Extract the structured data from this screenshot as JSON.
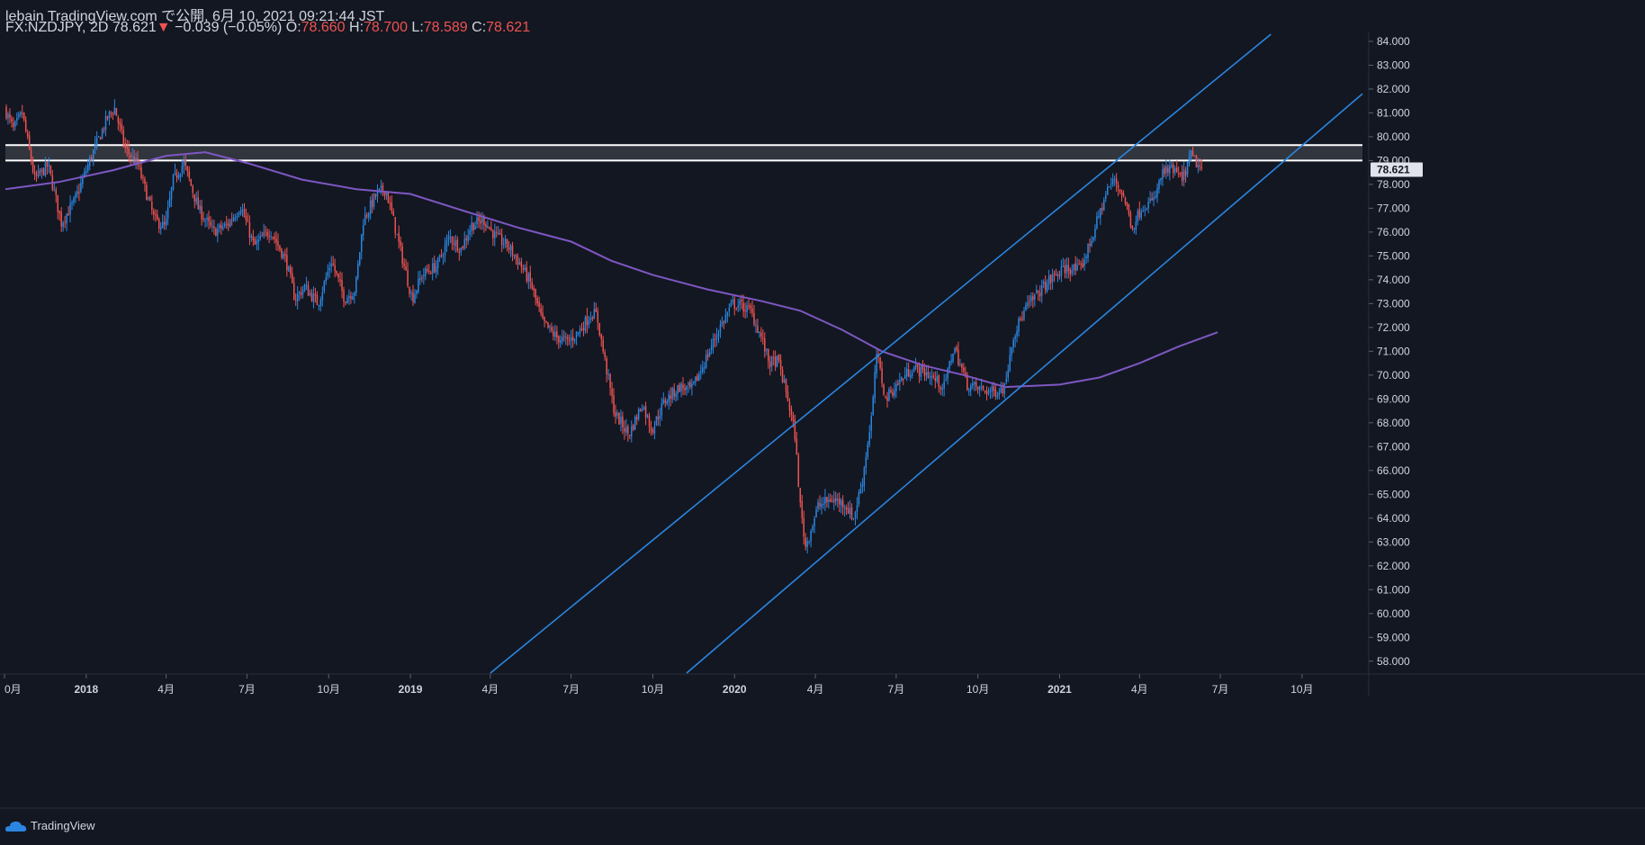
{
  "header": {
    "line1": "lebain TradingView.com で公開, 6月 10, 2021 09:21:44 JST",
    "symbol_interval": "FX:NZDJPY, 2D",
    "last": "78.621",
    "change_arrow": "▼",
    "change": "−0.039 (−0.05%)",
    "o_label": "O:",
    "o_value": "78.660",
    "h_label": "H:",
    "h_value": "78.700",
    "l_label": "L:",
    "l_value": "78.589",
    "c_label": "C:",
    "c_value": "78.621"
  },
  "footer": {
    "brand": "TradingView"
  },
  "colors": {
    "background": "#131722",
    "up": "#2a86e0",
    "down": "#ef5350",
    "ma": "#7e57c2",
    "channel": "#2a86e0",
    "zone_fill": "#3a3d45",
    "zone_line": "#ffffff",
    "axis_text": "#d1d4dc",
    "price_tag_bg": "#e0e3eb",
    "price_tag_text": "#131722"
  },
  "chart_data": {
    "type": "candlestick",
    "symbol": "FX:NZDJPY",
    "interval": "2D",
    "y_axis": {
      "min": 57.5,
      "max": 84.3,
      "ticks": [
        "58.000",
        "59.000",
        "60.000",
        "61.000",
        "62.000",
        "63.000",
        "64.000",
        "65.000",
        "66.000",
        "67.000",
        "68.000",
        "69.000",
        "70.000",
        "71.000",
        "72.000",
        "73.000",
        "74.000",
        "75.000",
        "76.000",
        "77.000",
        "78.000",
        "79.000",
        "80.000",
        "81.000",
        "82.000",
        "83.000",
        "84.000"
      ]
    },
    "x_axis": {
      "start": "2017-10-02",
      "end": "2021-12-08",
      "tick_labels": [
        {
          "date": "2017-10-01",
          "label": "0月"
        },
        {
          "date": "2018-01-01",
          "label": "2018"
        },
        {
          "date": "2018-04-01",
          "label": "4月"
        },
        {
          "date": "2018-07-01",
          "label": "7月"
        },
        {
          "date": "2018-10-01",
          "label": "10月"
        },
        {
          "date": "2019-01-01",
          "label": "2019"
        },
        {
          "date": "2019-04-01",
          "label": "4月"
        },
        {
          "date": "2019-07-01",
          "label": "7月"
        },
        {
          "date": "2019-10-01",
          "label": "10月"
        },
        {
          "date": "2020-01-01",
          "label": "2020"
        },
        {
          "date": "2020-04-01",
          "label": "4月"
        },
        {
          "date": "2020-07-01",
          "label": "7月"
        },
        {
          "date": "2020-10-01",
          "label": "10月"
        },
        {
          "date": "2021-01-01",
          "label": "2021"
        },
        {
          "date": "2021-04-01",
          "label": "4月"
        },
        {
          "date": "2021-07-01",
          "label": "7月"
        },
        {
          "date": "2021-10-01",
          "label": "10月"
        }
      ]
    },
    "last_price": {
      "value": 78.621,
      "label": "78.621"
    },
    "price_path": [
      [
        "2017-10-02",
        81.2
      ],
      [
        "2017-10-12",
        80.3
      ],
      [
        "2017-10-22",
        81.0
      ],
      [
        "2017-11-05",
        78.2
      ],
      [
        "2017-11-20",
        78.8
      ],
      [
        "2017-12-05",
        76.4
      ],
      [
        "2017-12-20",
        77.3
      ],
      [
        "2018-01-08",
        79.2
      ],
      [
        "2018-01-26",
        80.8
      ],
      [
        "2018-02-03",
        81.2
      ],
      [
        "2018-02-15",
        79.5
      ],
      [
        "2018-03-01",
        78.8
      ],
      [
        "2018-03-20",
        76.5
      ],
      [
        "2018-04-01",
        76.2
      ],
      [
        "2018-04-10",
        78.2
      ],
      [
        "2018-04-22",
        78.9
      ],
      [
        "2018-05-08",
        77.0
      ],
      [
        "2018-05-25",
        76.0
      ],
      [
        "2018-06-10",
        76.3
      ],
      [
        "2018-06-25",
        77.1
      ],
      [
        "2018-07-10",
        75.4
      ],
      [
        "2018-07-28",
        76.1
      ],
      [
        "2018-08-15",
        74.8
      ],
      [
        "2018-08-25",
        73.2
      ],
      [
        "2018-09-05",
        73.7
      ],
      [
        "2018-09-20",
        73.0
      ],
      [
        "2018-10-05",
        74.8
      ],
      [
        "2018-10-20",
        73.2
      ],
      [
        "2018-11-01",
        73.6
      ],
      [
        "2018-11-10",
        76.5
      ],
      [
        "2018-11-25",
        77.6
      ],
      [
        "2018-12-05",
        77.8
      ],
      [
        "2018-12-12",
        76.8
      ],
      [
        "2018-12-20",
        75.5
      ],
      [
        "2019-01-04",
        73.2
      ],
      [
        "2019-01-15",
        74.2
      ],
      [
        "2019-02-01",
        74.6
      ],
      [
        "2019-02-15",
        75.8
      ],
      [
        "2019-02-28",
        75.3
      ],
      [
        "2019-03-12",
        76.3
      ],
      [
        "2019-03-26",
        76.5
      ],
      [
        "2019-04-08",
        75.8
      ],
      [
        "2019-04-22",
        75.4
      ],
      [
        "2019-05-05",
        74.7
      ],
      [
        "2019-05-18",
        73.8
      ],
      [
        "2019-05-31",
        72.2
      ],
      [
        "2019-06-15",
        71.6
      ],
      [
        "2019-06-28",
        71.4
      ],
      [
        "2019-07-10",
        71.8
      ],
      [
        "2019-07-25",
        72.6
      ],
      [
        "2019-07-31",
        72.5
      ],
      [
        "2019-08-08",
        70.8
      ],
      [
        "2019-08-20",
        68.4
      ],
      [
        "2019-09-05",
        67.5
      ],
      [
        "2019-09-20",
        68.8
      ],
      [
        "2019-10-01",
        67.7
      ],
      [
        "2019-10-15",
        68.9
      ],
      [
        "2019-11-01",
        69.5
      ],
      [
        "2019-11-15",
        69.4
      ],
      [
        "2019-12-01",
        70.7
      ],
      [
        "2019-12-15",
        71.9
      ],
      [
        "2019-12-31",
        73.0
      ],
      [
        "2020-01-10",
        72.9
      ],
      [
        "2020-01-20",
        72.7
      ],
      [
        "2020-02-01",
        71.6
      ],
      [
        "2020-02-10",
        70.5
      ],
      [
        "2020-02-20",
        70.6
      ],
      [
        "2020-03-02",
        69.0
      ],
      [
        "2020-03-10",
        67.5
      ],
      [
        "2020-03-16",
        64.5
      ],
      [
        "2020-03-22",
        62.8
      ],
      [
        "2020-04-05",
        64.5
      ],
      [
        "2020-04-20",
        64.8
      ],
      [
        "2020-05-05",
        64.6
      ],
      [
        "2020-05-15",
        64.0
      ],
      [
        "2020-05-25",
        65.6
      ],
      [
        "2020-06-05",
        68.5
      ],
      [
        "2020-06-10",
        70.9
      ],
      [
        "2020-06-20",
        69.0
      ],
      [
        "2020-07-05",
        69.7
      ],
      [
        "2020-07-20",
        70.3
      ],
      [
        "2020-08-05",
        70.1
      ],
      [
        "2020-08-25",
        69.5
      ],
      [
        "2020-09-05",
        71.2
      ],
      [
        "2020-09-20",
        69.6
      ],
      [
        "2020-10-05",
        69.4
      ],
      [
        "2020-10-20",
        69.3
      ],
      [
        "2020-11-01",
        69.5
      ],
      [
        "2020-11-10",
        71.6
      ],
      [
        "2020-11-25",
        72.8
      ],
      [
        "2020-12-10",
        73.5
      ],
      [
        "2020-12-25",
        74.1
      ],
      [
        "2021-01-10",
        74.5
      ],
      [
        "2021-01-25",
        74.4
      ],
      [
        "2021-02-05",
        75.5
      ],
      [
        "2021-02-25",
        77.8
      ],
      [
        "2021-03-05",
        78.2
      ],
      [
        "2021-03-15",
        77.5
      ],
      [
        "2021-03-25",
        76.2
      ],
      [
        "2021-04-05",
        77.1
      ],
      [
        "2021-04-18",
        77.3
      ],
      [
        "2021-04-28",
        78.5
      ],
      [
        "2021-05-10",
        78.6
      ],
      [
        "2021-05-20",
        78.2
      ],
      [
        "2021-05-30",
        79.2
      ],
      [
        "2021-06-05",
        78.9
      ],
      [
        "2021-06-10",
        78.62
      ]
    ],
    "moving_average": [
      [
        "2017-10-02",
        77.8
      ],
      [
        "2017-12-01",
        78.1
      ],
      [
        "2018-02-01",
        78.6
      ],
      [
        "2018-04-01",
        79.2
      ],
      [
        "2018-05-15",
        79.35
      ],
      [
        "2018-07-01",
        78.9
      ],
      [
        "2018-09-01",
        78.2
      ],
      [
        "2018-11-01",
        77.8
      ],
      [
        "2019-01-01",
        77.6
      ],
      [
        "2019-03-01",
        76.9
      ],
      [
        "2019-05-01",
        76.2
      ],
      [
        "2019-07-01",
        75.6
      ],
      [
        "2019-08-15",
        74.8
      ],
      [
        "2019-10-01",
        74.2
      ],
      [
        "2019-12-01",
        73.6
      ],
      [
        "2020-02-01",
        73.1
      ],
      [
        "2020-03-15",
        72.7
      ],
      [
        "2020-05-01",
        71.9
      ],
      [
        "2020-06-15",
        71.0
      ],
      [
        "2020-08-01",
        70.4
      ],
      [
        "2020-09-15",
        70.0
      ],
      [
        "2020-11-01",
        69.5
      ],
      [
        "2021-01-01",
        69.6
      ],
      [
        "2021-02-15",
        69.9
      ],
      [
        "2021-04-01",
        70.5
      ],
      [
        "2021-05-15",
        71.2
      ],
      [
        "2021-06-28",
        71.8
      ]
    ],
    "horizontal_zone": {
      "upper": 79.65,
      "lower": 79.0
    },
    "channel_lines": [
      {
        "from": [
          "2019-04-01",
          57.5
        ],
        "to": [
          "2021-08-27",
          84.3
        ]
      },
      {
        "from": [
          "2019-11-08",
          57.5
        ],
        "to": [
          "2021-12-08",
          81.8
        ]
      }
    ]
  }
}
